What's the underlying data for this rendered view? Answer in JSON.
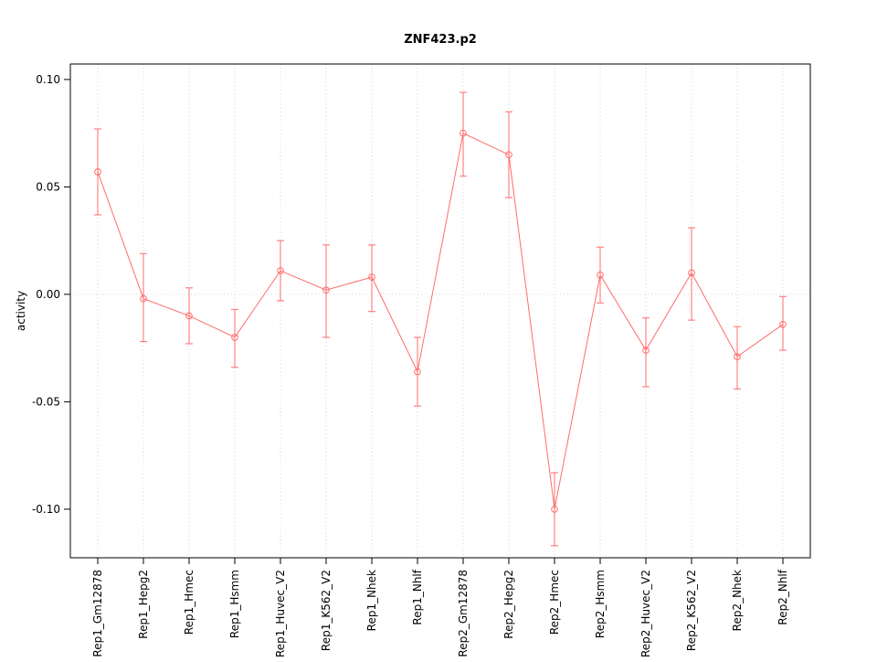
{
  "chart_data": {
    "type": "line",
    "title": "ZNF423.p2",
    "xlabel": "",
    "ylabel": "activity",
    "legend": "none",
    "grid": "dotted vertical line at each category; dotted horizontal line at y=0",
    "ylim": [
      -0.1226,
      0.1072
    ],
    "yticks": [
      -0.1,
      -0.05,
      0.0,
      0.05,
      0.1
    ],
    "ytick_labels": [
      "-0.10",
      "-0.05",
      "0.00",
      "0.05",
      "0.10"
    ],
    "categories": [
      "Rep1_Gm12878",
      "Rep1_Hepg2",
      "Rep1_Hmec",
      "Rep1_Hsmm",
      "Rep1_Huvec_V2",
      "Rep1_K562_V2",
      "Rep1_Nhek",
      "Rep1_Nhlf",
      "Rep2_Gm12878",
      "Rep2_Hepg2",
      "Rep2_Hmec",
      "Rep2_Hsmm",
      "Rep2_Huvec_V2",
      "Rep2_K562_V2",
      "Rep2_Nhek",
      "Rep2_Nhlf"
    ],
    "series": [
      {
        "name": "activity",
        "marker": "open-circle",
        "values": [
          0.057,
          -0.002,
          -0.01,
          -0.02,
          0.011,
          0.002,
          0.008,
          -0.036,
          0.075,
          0.065,
          -0.1,
          0.009,
          -0.026,
          0.01,
          -0.029,
          -0.014
        ],
        "error_low": [
          0.037,
          -0.022,
          -0.023,
          -0.034,
          -0.003,
          -0.02,
          -0.008,
          -0.052,
          0.055,
          0.045,
          -0.117,
          -0.004,
          -0.043,
          -0.012,
          -0.044,
          -0.026
        ],
        "error_high": [
          0.077,
          0.019,
          0.003,
          -0.007,
          0.025,
          0.023,
          0.023,
          -0.02,
          0.094,
          0.085,
          -0.083,
          0.022,
          -0.011,
          0.031,
          -0.015,
          -0.001
        ]
      }
    ],
    "colors": {
      "series": "#ff6b6b",
      "grid": "#d6d6d6",
      "axis": "#000000",
      "background": "#ffffff"
    }
  }
}
